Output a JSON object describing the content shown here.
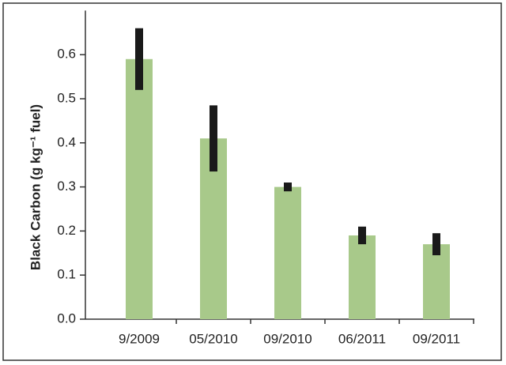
{
  "chart_data": {
    "type": "bar",
    "ylabel": "Black Carbon (g kg⁻¹ fuel)",
    "categories": [
      "9/2009",
      "05/2010",
      "09/2010",
      "06/2011",
      "09/2011"
    ],
    "values": [
      0.59,
      0.41,
      0.3,
      0.19,
      0.17
    ],
    "errors": [
      0.07,
      0.075,
      0.01,
      0.02,
      0.025
    ],
    "color": "#a8c98a",
    "error_color": "#1a1a1a",
    "ylim": [
      0,
      0.7
    ],
    "yticks": [
      {
        "value": 0,
        "label": "0.0"
      },
      0.1,
      0.2,
      0.3,
      0.4,
      0.5,
      0.6
    ],
    "grid": false
  }
}
